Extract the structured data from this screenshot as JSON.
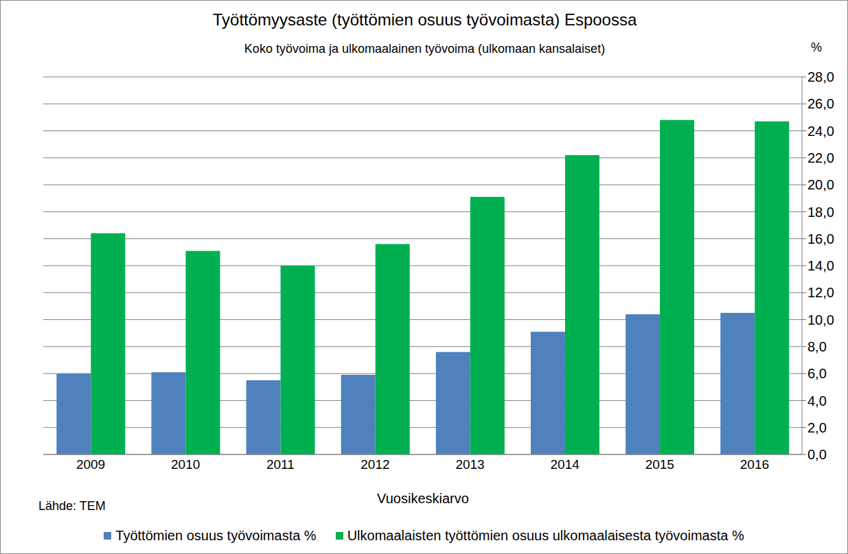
{
  "chart_data": {
    "type": "bar",
    "title": "Työttömyysaste (työttömien osuus työvoimasta) Espoossa",
    "subtitle": "Koko työvoima ja ulkomaalainen työvoima (ulkomaan kansalaiset)",
    "x_label": "Vuosikeskiarvo",
    "y_label": "%",
    "source": "Lähde: TEM",
    "categories": [
      "2009",
      "2010",
      "2011",
      "2012",
      "2013",
      "2014",
      "2015",
      "2016"
    ],
    "series": [
      {
        "name": "Työttömien osuus työvoimasta %",
        "color": "#4f81bd",
        "values": [
          6.0,
          6.1,
          5.5,
          5.9,
          7.6,
          9.1,
          10.4,
          10.5
        ]
      },
      {
        "name": "Ulkomaalaisten työttömien osuus ulkomaalaisesta työvoimasta %",
        "color": "#00b050",
        "values": [
          16.4,
          15.1,
          14.0,
          15.6,
          19.1,
          22.2,
          24.8,
          24.7
        ]
      }
    ],
    "ylim": [
      0,
      28
    ],
    "yticks": [
      {
        "value": 0,
        "label": "0,0"
      },
      {
        "value": 2,
        "label": "2,0"
      },
      {
        "value": 4,
        "label": "4,0"
      },
      {
        "value": 6,
        "label": "6,0"
      },
      {
        "value": 8,
        "label": "8,0"
      },
      {
        "value": 10,
        "label": "10,0"
      },
      {
        "value": 12,
        "label": "12,0"
      },
      {
        "value": 14,
        "label": "14,0"
      },
      {
        "value": 16,
        "label": "16,0"
      },
      {
        "value": 18,
        "label": "18,0"
      },
      {
        "value": 20,
        "label": "20,0"
      },
      {
        "value": 22,
        "label": "22,0"
      },
      {
        "value": 24,
        "label": "24,0"
      },
      {
        "value": 26,
        "label": "26,0"
      },
      {
        "value": 28,
        "label": "28,0"
      }
    ],
    "grid": true,
    "legend": "bottom"
  }
}
